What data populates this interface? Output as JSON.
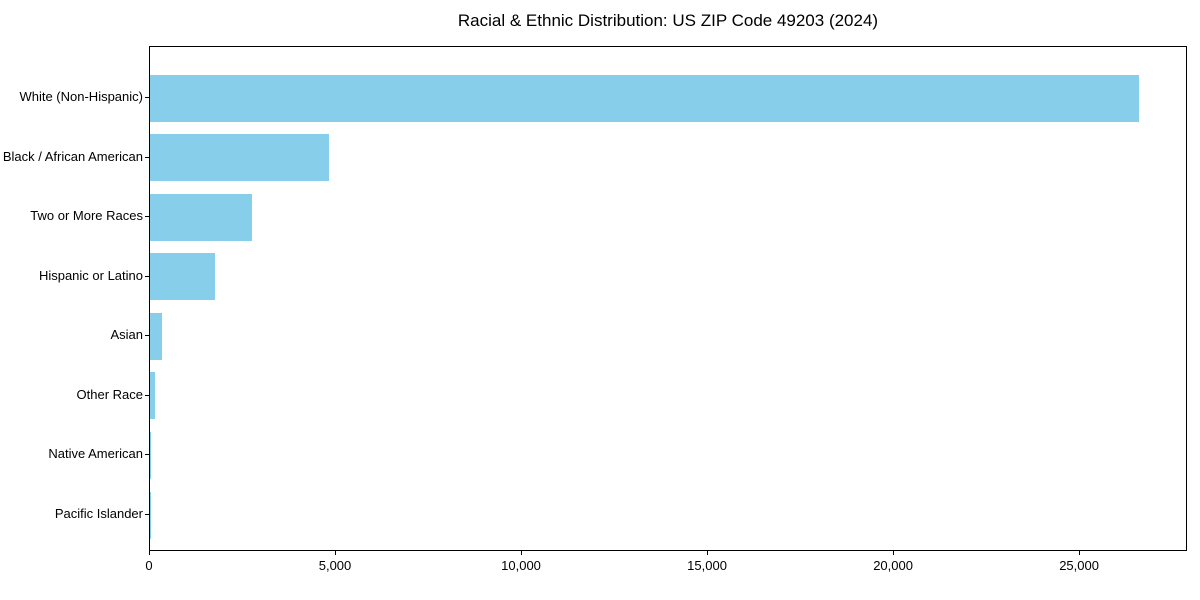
{
  "chart_data": {
    "type": "bar",
    "orientation": "horizontal",
    "title": "Racial & Ethnic Distribution: US ZIP Code 49203 (2024)",
    "categories": [
      "White (Non-Hispanic)",
      "Black / African American",
      "Two or More Races",
      "Hispanic or Latino",
      "Asian",
      "Other Race",
      "Native American",
      "Pacific Islander"
    ],
    "values": [
      26570,
      4810,
      2750,
      1760,
      310,
      135,
      40,
      10
    ],
    "bar_color": "#87CEEB",
    "xlabel": "",
    "ylabel": "",
    "xlim": [
      0,
      27900
    ],
    "x_ticks": [
      0,
      5000,
      10000,
      15000,
      20000,
      25000
    ],
    "x_tick_labels": [
      "0",
      "5,000",
      "10,000",
      "15,000",
      "20,000",
      "25,000"
    ],
    "grid": false,
    "legend": null,
    "axis_color": "#000000",
    "text_color": "#000000",
    "background_color": "#ffffff"
  }
}
